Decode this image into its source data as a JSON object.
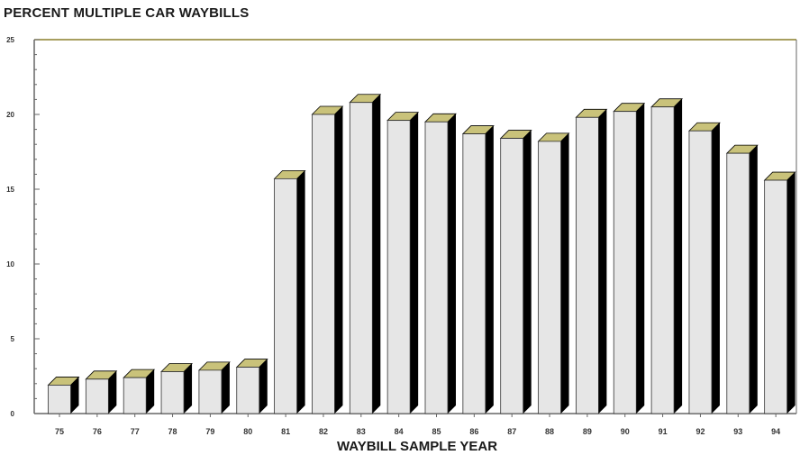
{
  "chart_data": {
    "type": "bar",
    "title": "PERCENT MULTIPLE CAR WAYBILLS",
    "xlabel": "WAYBILL SAMPLE YEAR",
    "ylabel": "",
    "categories": [
      "75",
      "76",
      "77",
      "78",
      "79",
      "80",
      "81",
      "82",
      "83",
      "84",
      "85",
      "86",
      "87",
      "88",
      "89",
      "90",
      "91",
      "92",
      "93",
      "94"
    ],
    "values": [
      1.9,
      2.3,
      2.4,
      2.8,
      2.9,
      3.1,
      15.7,
      20.0,
      20.8,
      19.6,
      19.5,
      18.7,
      18.4,
      18.2,
      19.8,
      20.2,
      20.5,
      18.9,
      17.4,
      15.6
    ],
    "ylim": [
      0,
      25
    ],
    "yticks": [
      0,
      5,
      10,
      15,
      20,
      25
    ],
    "grid": false,
    "colors": {
      "bar_face": "#e6e6e6",
      "bar_side": "#000000",
      "bar_top": "#c9c27a",
      "axis": "#666666",
      "frame_top": "#8a7f2a"
    }
  }
}
